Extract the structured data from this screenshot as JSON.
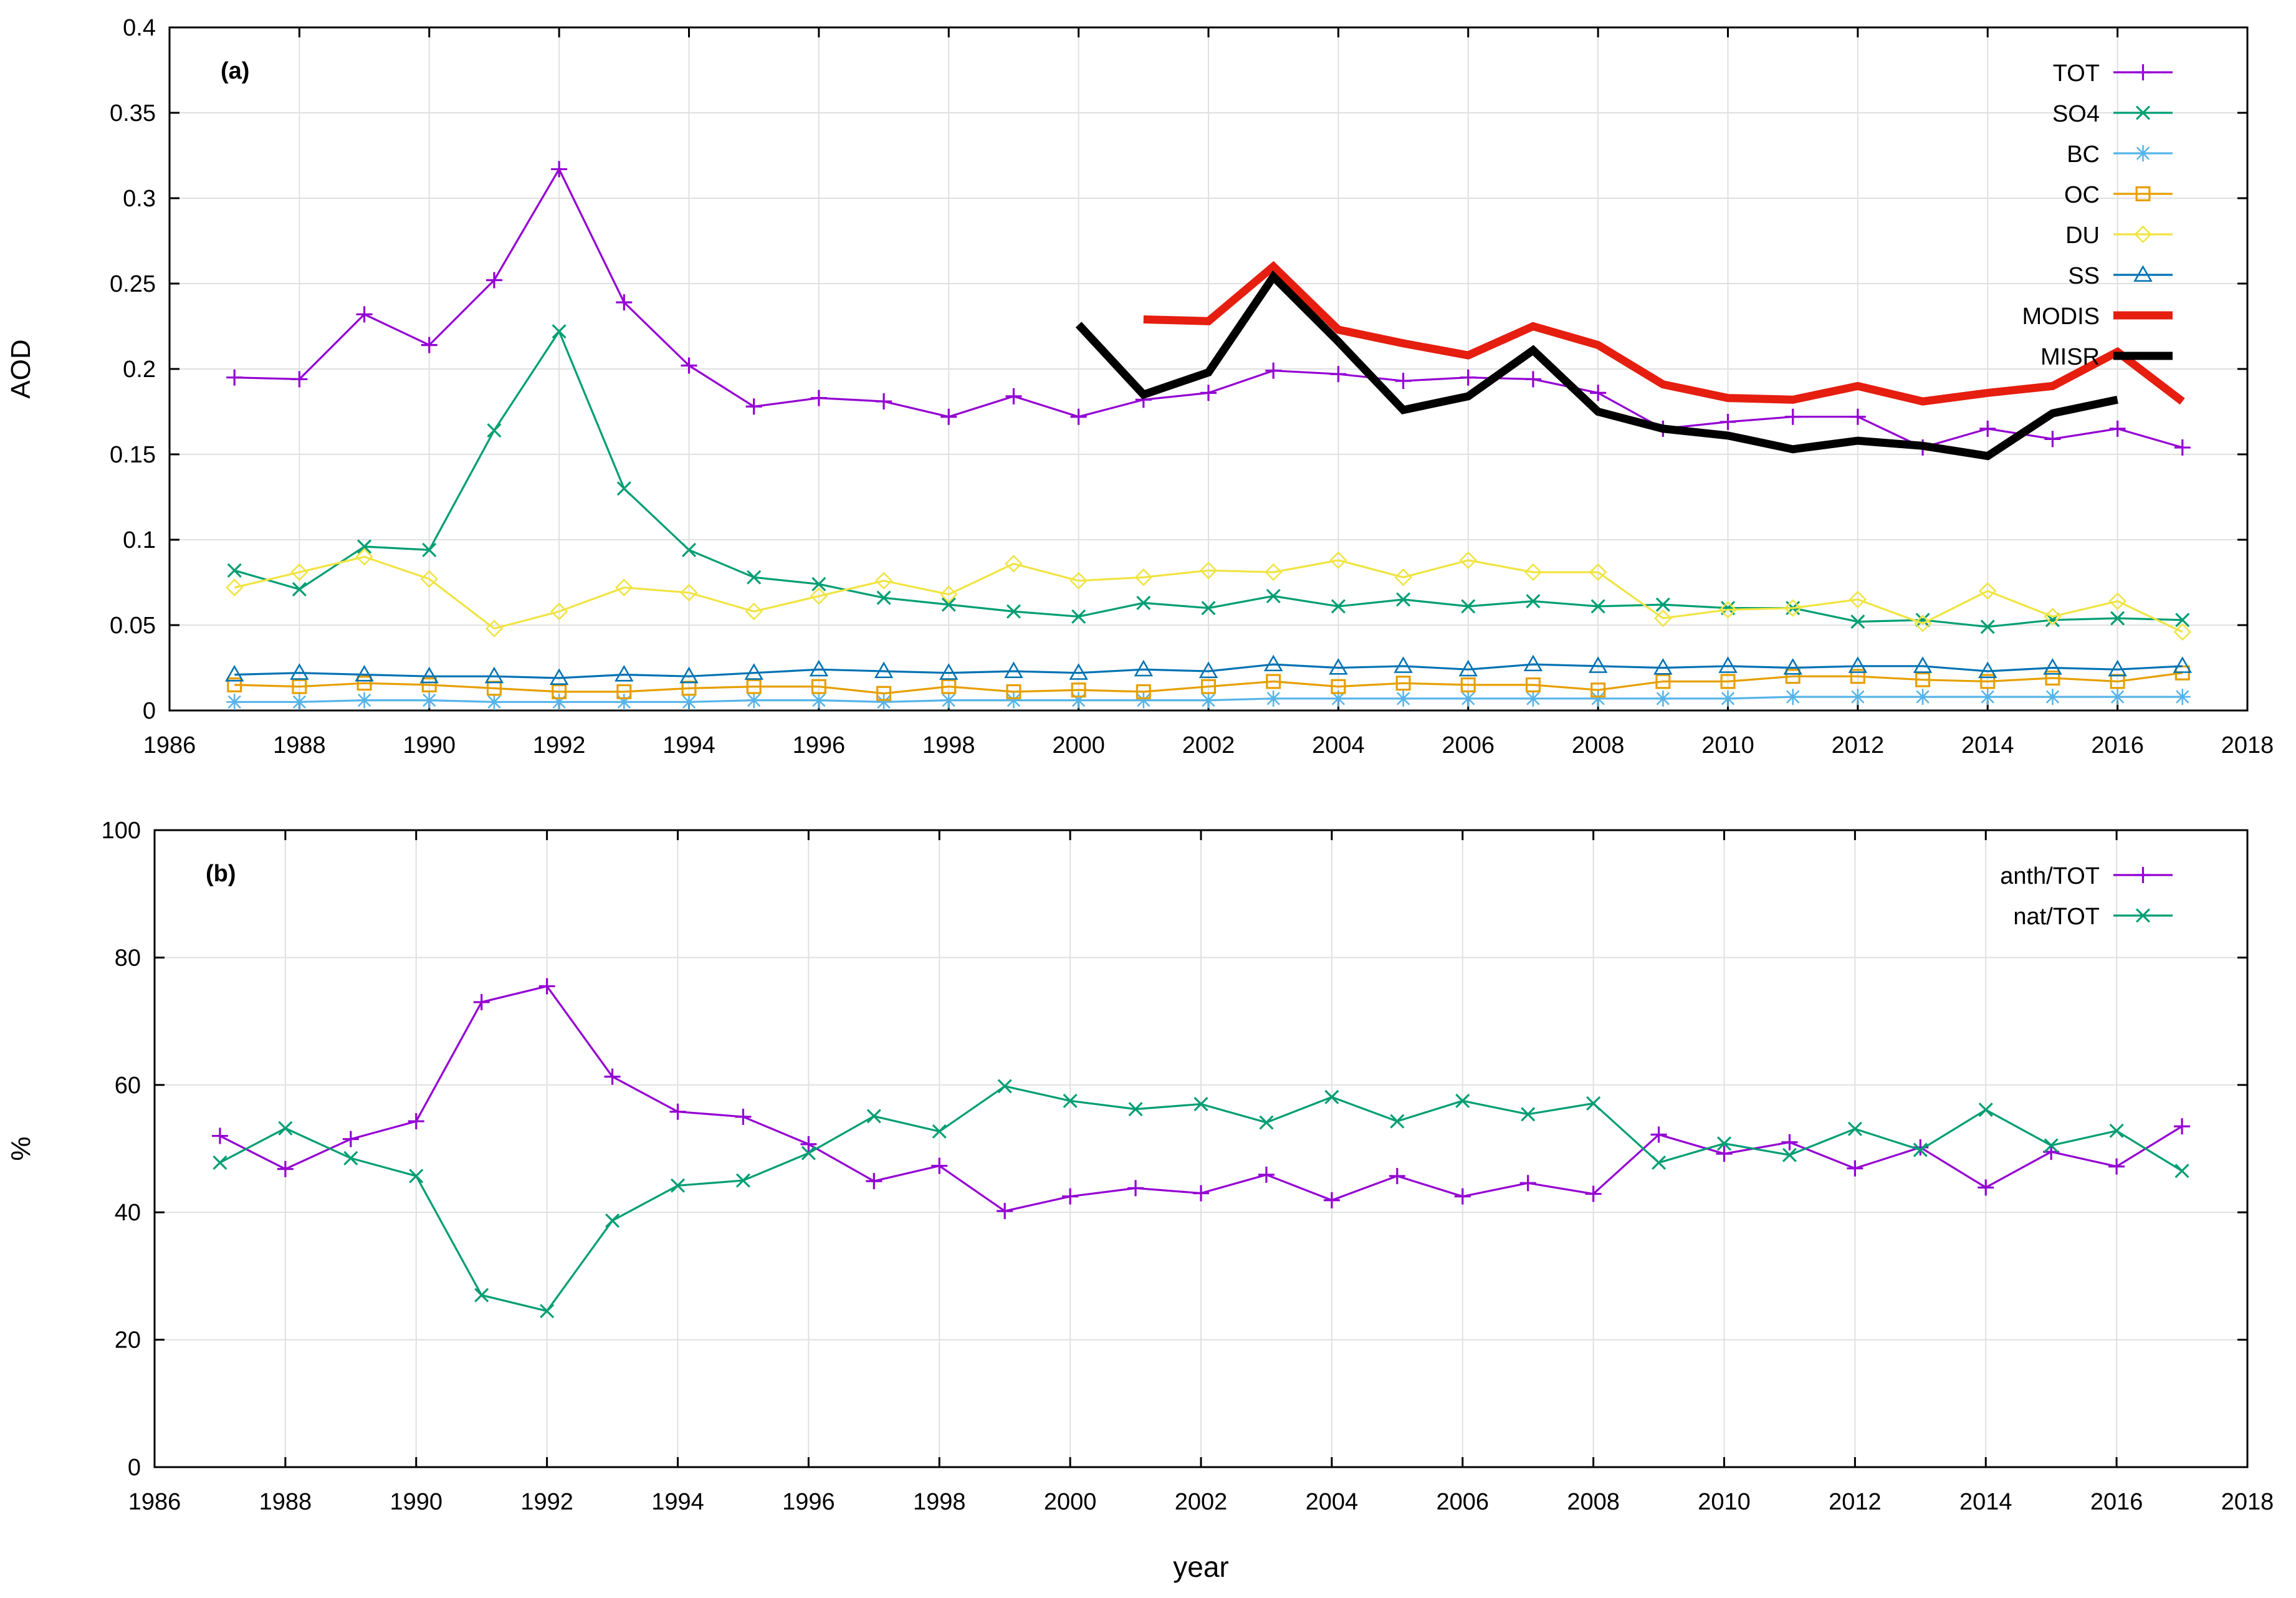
{
  "chart_data": [
    {
      "type": "line",
      "panel_label": "(a)",
      "xlabel": "",
      "ylabel": "AOD",
      "xlim": [
        1986,
        2018
      ],
      "ylim": [
        0,
        0.4
      ],
      "x_ticks": [
        "1986",
        "1988",
        "1990",
        "1992",
        "1994",
        "1996",
        "1998",
        "2000",
        "2002",
        "2004",
        "2006",
        "2008",
        "2010",
        "2012",
        "2014",
        "2016",
        "2018"
      ],
      "y_ticks": [
        "0",
        "0.05",
        "0.1",
        "0.15",
        "0.2",
        "0.25",
        "0.3",
        "0.35",
        "0.4"
      ],
      "grid": true,
      "legend": "top-right",
      "series": [
        {
          "name": "TOT",
          "color": "#9400d3",
          "marker": "plus",
          "x": [
            1987,
            1988,
            1989,
            1990,
            1991,
            1992,
            1993,
            1994,
            1995,
            1996,
            1997,
            1998,
            1999,
            2000,
            2001,
            2002,
            2003,
            2004,
            2005,
            2006,
            2007,
            2008,
            2009,
            2010,
            2011,
            2012,
            2013,
            2014,
            2015,
            2016,
            2017
          ],
          "values": [
            0.195,
            0.194,
            0.232,
            0.214,
            0.252,
            0.317,
            0.239,
            0.202,
            0.178,
            0.183,
            0.181,
            0.172,
            0.184,
            0.172,
            0.182,
            0.186,
            0.199,
            0.197,
            0.193,
            0.195,
            0.194,
            0.186,
            0.165,
            0.169,
            0.172,
            0.172,
            0.154,
            0.165,
            0.159,
            0.165,
            0.154
          ]
        },
        {
          "name": "SO4",
          "color": "#009e73",
          "marker": "x",
          "x": [
            1987,
            1988,
            1989,
            1990,
            1991,
            1992,
            1993,
            1994,
            1995,
            1996,
            1997,
            1998,
            1999,
            2000,
            2001,
            2002,
            2003,
            2004,
            2005,
            2006,
            2007,
            2008,
            2009,
            2010,
            2011,
            2012,
            2013,
            2014,
            2015,
            2016,
            2017
          ],
          "values": [
            0.082,
            0.071,
            0.096,
            0.094,
            0.164,
            0.222,
            0.13,
            0.094,
            0.078,
            0.074,
            0.066,
            0.062,
            0.058,
            0.055,
            0.063,
            0.06,
            0.067,
            0.061,
            0.065,
            0.061,
            0.064,
            0.061,
            0.062,
            0.06,
            0.06,
            0.052,
            0.053,
            0.049,
            0.053,
            0.054,
            0.053
          ]
        },
        {
          "name": "BC",
          "color": "#56b4e9",
          "marker": "star",
          "x": [
            1987,
            1988,
            1989,
            1990,
            1991,
            1992,
            1993,
            1994,
            1995,
            1996,
            1997,
            1998,
            1999,
            2000,
            2001,
            2002,
            2003,
            2004,
            2005,
            2006,
            2007,
            2008,
            2009,
            2010,
            2011,
            2012,
            2013,
            2014,
            2015,
            2016,
            2017
          ],
          "values": [
            0.005,
            0.005,
            0.006,
            0.006,
            0.005,
            0.005,
            0.005,
            0.005,
            0.006,
            0.006,
            0.005,
            0.006,
            0.006,
            0.006,
            0.006,
            0.006,
            0.007,
            0.007,
            0.007,
            0.007,
            0.007,
            0.007,
            0.007,
            0.007,
            0.008,
            0.008,
            0.008,
            0.008,
            0.008,
            0.008,
            0.008
          ]
        },
        {
          "name": "OC",
          "color": "#e69f00",
          "marker": "square",
          "x": [
            1987,
            1988,
            1989,
            1990,
            1991,
            1992,
            1993,
            1994,
            1995,
            1996,
            1997,
            1998,
            1999,
            2000,
            2001,
            2002,
            2003,
            2004,
            2005,
            2006,
            2007,
            2008,
            2009,
            2010,
            2011,
            2012,
            2013,
            2014,
            2015,
            2016,
            2017
          ],
          "values": [
            0.015,
            0.014,
            0.016,
            0.015,
            0.013,
            0.011,
            0.011,
            0.013,
            0.014,
            0.014,
            0.01,
            0.014,
            0.011,
            0.012,
            0.011,
            0.014,
            0.017,
            0.014,
            0.016,
            0.015,
            0.015,
            0.012,
            0.017,
            0.017,
            0.02,
            0.02,
            0.018,
            0.017,
            0.019,
            0.017,
            0.022
          ]
        },
        {
          "name": "DU",
          "color": "#f0e442",
          "marker": "diamond",
          "x": [
            1987,
            1988,
            1989,
            1990,
            1991,
            1992,
            1993,
            1994,
            1995,
            1996,
            1997,
            1998,
            1999,
            2000,
            2001,
            2002,
            2003,
            2004,
            2005,
            2006,
            2007,
            2008,
            2009,
            2010,
            2011,
            2012,
            2013,
            2014,
            2015,
            2016,
            2017
          ],
          "values": [
            0.072,
            0.081,
            0.09,
            0.077,
            0.048,
            0.058,
            0.072,
            0.069,
            0.058,
            0.067,
            0.076,
            0.068,
            0.086,
            0.076,
            0.078,
            0.082,
            0.081,
            0.088,
            0.078,
            0.088,
            0.081,
            0.081,
            0.054,
            0.059,
            0.06,
            0.065,
            0.051,
            0.07,
            0.055,
            0.064,
            0.046
          ]
        },
        {
          "name": "SS",
          "color": "#0072b2",
          "marker": "triangle",
          "x": [
            1987,
            1988,
            1989,
            1990,
            1991,
            1992,
            1993,
            1994,
            1995,
            1996,
            1997,
            1998,
            1999,
            2000,
            2001,
            2002,
            2003,
            2004,
            2005,
            2006,
            2007,
            2008,
            2009,
            2010,
            2011,
            2012,
            2013,
            2014,
            2015,
            2016,
            2017
          ],
          "values": [
            0.021,
            0.022,
            0.021,
            0.02,
            0.02,
            0.019,
            0.021,
            0.02,
            0.022,
            0.024,
            0.023,
            0.022,
            0.023,
            0.022,
            0.024,
            0.023,
            0.027,
            0.025,
            0.026,
            0.024,
            0.027,
            0.026,
            0.025,
            0.026,
            0.025,
            0.026,
            0.026,
            0.023,
            0.025,
            0.024,
            0.026
          ]
        },
        {
          "name": "MODIS",
          "color": "#e51e10",
          "marker": "none",
          "thick": true,
          "x": [
            2001,
            2002,
            2003,
            2004,
            2005,
            2006,
            2007,
            2008,
            2009,
            2010,
            2011,
            2012,
            2013,
            2014,
            2015,
            2016,
            2017
          ],
          "values": [
            0.229,
            0.228,
            0.26,
            0.223,
            0.215,
            0.208,
            0.225,
            0.214,
            0.191,
            0.183,
            0.182,
            0.19,
            0.181,
            0.186,
            0.19,
            0.21,
            0.181
          ]
        },
        {
          "name": "MISR",
          "color": "#000000",
          "marker": "none",
          "thick": true,
          "x": [
            2000,
            2001,
            2002,
            2003,
            2004,
            2005,
            2006,
            2007,
            2008,
            2009,
            2010,
            2011,
            2012,
            2013,
            2014,
            2015,
            2016
          ],
          "values": [
            0.226,
            0.185,
            0.198,
            0.254,
            0.216,
            0.176,
            0.184,
            0.211,
            0.175,
            0.165,
            0.161,
            0.153,
            0.158,
            0.155,
            0.149,
            0.174,
            0.182
          ]
        }
      ]
    },
    {
      "type": "line",
      "panel_label": "(b)",
      "xlabel": "year",
      "ylabel": "%",
      "xlim": [
        1986,
        2018
      ],
      "ylim": [
        0,
        100
      ],
      "x_ticks": [
        "1986",
        "1988",
        "1990",
        "1992",
        "1994",
        "1996",
        "1998",
        "2000",
        "2002",
        "2004",
        "2006",
        "2008",
        "2010",
        "2012",
        "2014",
        "2016",
        "2018"
      ],
      "y_ticks": [
        "0",
        "20",
        "40",
        "60",
        "80",
        "100"
      ],
      "grid": true,
      "legend": "top-right",
      "series": [
        {
          "name": "anth/TOT",
          "color": "#9400d3",
          "marker": "plus",
          "x": [
            1987,
            1988,
            1989,
            1990,
            1991,
            1992,
            1993,
            1994,
            1995,
            1996,
            1997,
            1998,
            1999,
            2000,
            2001,
            2002,
            2003,
            2004,
            2005,
            2006,
            2007,
            2008,
            2009,
            2010,
            2011,
            2012,
            2013,
            2014,
            2015,
            2016,
            2017
          ],
          "values": [
            52,
            46.8,
            51.5,
            54.3,
            73,
            75.5,
            61.3,
            55.8,
            55,
            50.7,
            44.9,
            47.3,
            40.2,
            42.5,
            43.8,
            43,
            45.9,
            41.9,
            45.7,
            42.5,
            44.6,
            42.9,
            52.2,
            49.2,
            51,
            46.9,
            50.2,
            43.9,
            49.5,
            47.2,
            53.5
          ]
        },
        {
          "name": "nat/TOT",
          "color": "#009e73",
          "marker": "x",
          "x": [
            1987,
            1988,
            1989,
            1990,
            1991,
            1992,
            1993,
            1994,
            1995,
            1996,
            1997,
            1998,
            1999,
            2000,
            2001,
            2002,
            2003,
            2004,
            2005,
            2006,
            2007,
            2008,
            2009,
            2010,
            2011,
            2012,
            2013,
            2014,
            2015,
            2016,
            2017
          ],
          "values": [
            47.8,
            53.2,
            48.5,
            45.7,
            27,
            24.5,
            38.7,
            44.2,
            45,
            49.3,
            55.1,
            52.7,
            59.8,
            57.5,
            56.2,
            57,
            54.1,
            58.1,
            54.3,
            57.5,
            55.4,
            57.1,
            47.8,
            50.8,
            49,
            53.1,
            49.8,
            56.1,
            50.5,
            52.8,
            46.5
          ]
        }
      ]
    }
  ]
}
